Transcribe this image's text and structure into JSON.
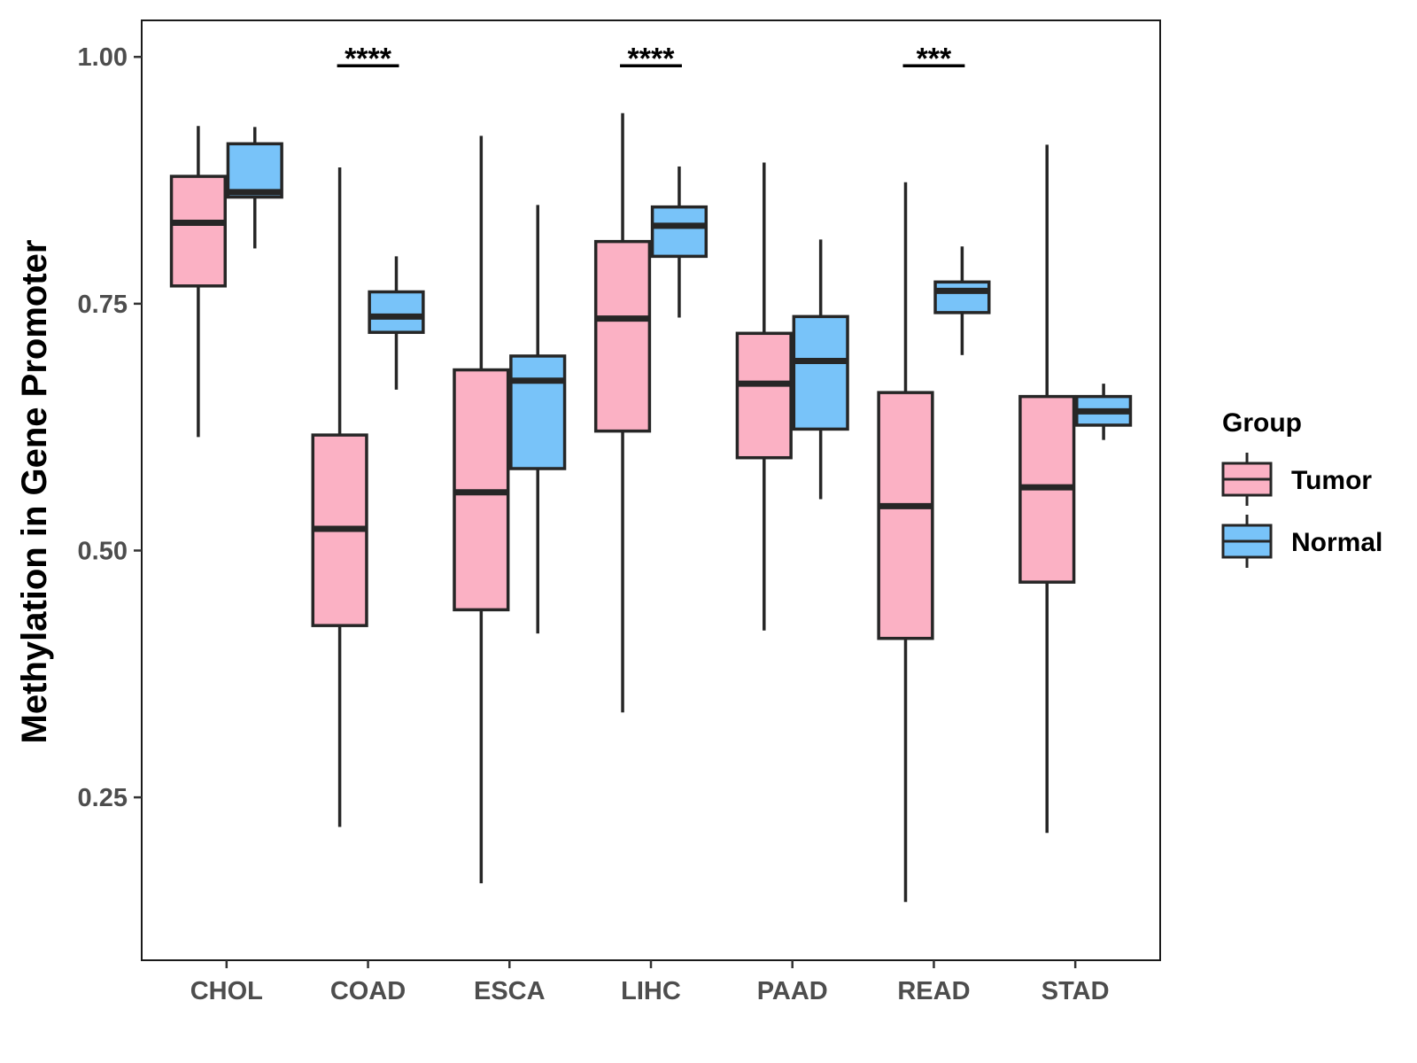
{
  "chart_data": {
    "type": "boxplot",
    "title": "",
    "xlabel": "",
    "ylabel": "Methylation in Gene Promoter",
    "ylim": [
      0.085,
      1.037
    ],
    "yticks": [
      0.25,
      0.5,
      0.75,
      1.0
    ],
    "ytick_labels": [
      "0.25",
      "0.50",
      "0.75",
      "1.00"
    ],
    "grid": false,
    "categories": [
      "CHOL",
      "COAD",
      "ESCA",
      "LIHC",
      "PAAD",
      "READ",
      "STAD"
    ],
    "series": [
      {
        "name": "Tumor",
        "color": "#FBB1C4",
        "boxes": [
          {
            "min": 0.615,
            "q1": 0.768,
            "median": 0.832,
            "q3": 0.879,
            "max": 0.93
          },
          {
            "min": 0.22,
            "q1": 0.424,
            "median": 0.522,
            "q3": 0.617,
            "max": 0.888
          },
          {
            "min": 0.163,
            "q1": 0.44,
            "median": 0.559,
            "q3": 0.683,
            "max": 0.92
          },
          {
            "min": 0.336,
            "q1": 0.621,
            "median": 0.735,
            "q3": 0.813,
            "max": 0.943
          },
          {
            "min": 0.419,
            "q1": 0.594,
            "median": 0.669,
            "q3": 0.72,
            "max": 0.893
          },
          {
            "min": 0.144,
            "q1": 0.411,
            "median": 0.545,
            "q3": 0.66,
            "max": 0.873
          },
          {
            "min": 0.214,
            "q1": 0.468,
            "median": 0.564,
            "q3": 0.656,
            "max": 0.911
          }
        ]
      },
      {
        "name": "Normal",
        "color": "#78C3F9",
        "boxes": [
          {
            "min": 0.806,
            "q1": 0.858,
            "median": 0.863,
            "q3": 0.912,
            "max": 0.929
          },
          {
            "min": 0.663,
            "q1": 0.721,
            "median": 0.737,
            "q3": 0.762,
            "max": 0.798
          },
          {
            "min": 0.416,
            "q1": 0.583,
            "median": 0.672,
            "q3": 0.697,
            "max": 0.85
          },
          {
            "min": 0.736,
            "q1": 0.798,
            "median": 0.829,
            "q3": 0.848,
            "max": 0.889
          },
          {
            "min": 0.552,
            "q1": 0.623,
            "median": 0.692,
            "q3": 0.737,
            "max": 0.815
          },
          {
            "min": 0.698,
            "q1": 0.741,
            "median": 0.763,
            "q3": 0.772,
            "max": 0.808
          },
          {
            "min": 0.612,
            "q1": 0.627,
            "median": 0.641,
            "q3": 0.656,
            "max": 0.669
          }
        ]
      }
    ],
    "annotations": [
      {
        "category": "COAD",
        "text": "****",
        "y": 0.991
      },
      {
        "category": "LIHC",
        "text": "****",
        "y": 0.991
      },
      {
        "category": "READ",
        "text": "***",
        "y": 0.991
      }
    ],
    "legend": {
      "title": "Group",
      "position": "right",
      "entries": [
        "Tumor",
        "Normal"
      ]
    }
  }
}
